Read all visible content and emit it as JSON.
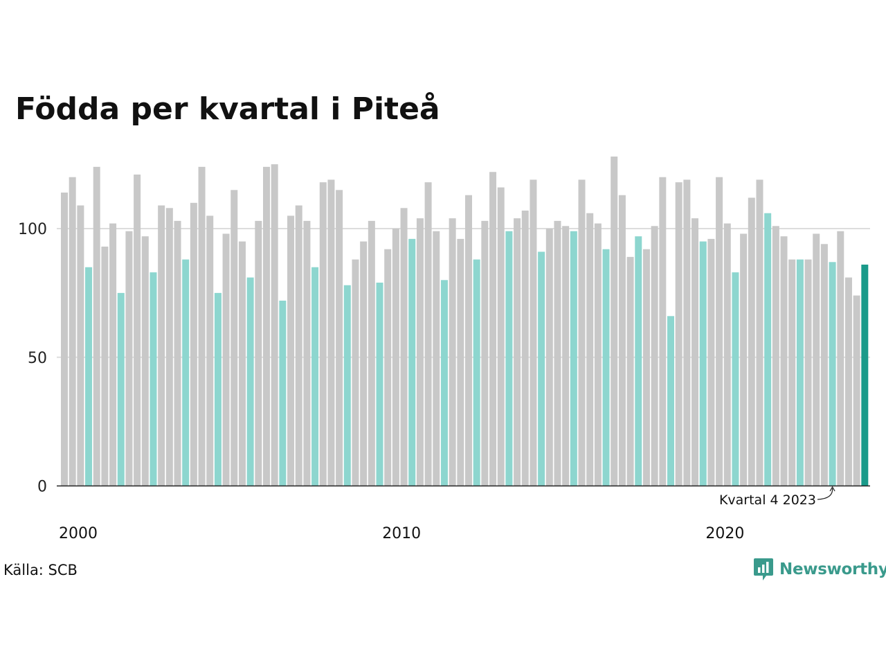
{
  "title": "Födda per kvartal i Piteå",
  "source": "Källa: SCB",
  "brand": {
    "name": "Newsworthy",
    "icon": "newsworthy-logo-icon",
    "color": "#3a9a8c"
  },
  "colors": {
    "other_quarters": "#c8c8c8",
    "q4": "#8dd6cf",
    "latest": "#1a9a8a",
    "grid": "#dddddd",
    "axis": "#222222"
  },
  "chart_data": {
    "type": "bar",
    "title": "Födda per kvartal i Piteå",
    "xlabel": "",
    "ylabel": "",
    "ylim": [
      0,
      130
    ],
    "yticks": [
      0,
      50,
      100
    ],
    "xtick_labels": [
      "2000",
      "2010",
      "2020"
    ],
    "grid": true,
    "annotation": {
      "text": "Kvartal 4 2023",
      "target_index": 95
    },
    "categories": [
      "2000 K1",
      "2000 K2",
      "2000 K3",
      "2000 K4",
      "2001 K1",
      "2001 K2",
      "2001 K3",
      "2001 K4",
      "2002 K1",
      "2002 K2",
      "2002 K3",
      "2002 K4",
      "2003 K1",
      "2003 K2",
      "2003 K3",
      "2003 K4",
      "2004 K1",
      "2004 K2",
      "2004 K3",
      "2004 K4",
      "2005 K1",
      "2005 K2",
      "2005 K3",
      "2005 K4",
      "2006 K1",
      "2006 K2",
      "2006 K3",
      "2006 K4",
      "2007 K1",
      "2007 K2",
      "2007 K3",
      "2007 K4",
      "2008 K1",
      "2008 K2",
      "2008 K3",
      "2008 K4",
      "2009 K1",
      "2009 K2",
      "2009 K3",
      "2009 K4",
      "2010 K1",
      "2010 K2",
      "2010 K3",
      "2010 K4",
      "2011 K1",
      "2011 K2",
      "2011 K3",
      "2011 K4",
      "2012 K1",
      "2012 K2",
      "2012 K3",
      "2012 K4",
      "2013 K1",
      "2013 K2",
      "2013 K3",
      "2013 K4",
      "2014 K1",
      "2014 K2",
      "2014 K3",
      "2014 K4",
      "2015 K1",
      "2015 K2",
      "2015 K3",
      "2015 K4",
      "2016 K1",
      "2016 K2",
      "2016 K3",
      "2016 K4",
      "2017 K1",
      "2017 K2",
      "2017 K3",
      "2017 K4",
      "2018 K1",
      "2018 K2",
      "2018 K3",
      "2018 K4",
      "2019 K1",
      "2019 K2",
      "2019 K3",
      "2019 K4",
      "2020 K1",
      "2020 K2",
      "2020 K3",
      "2020 K4",
      "2021 K1",
      "2021 K2",
      "2021 K3",
      "2021 K4",
      "2022 K1",
      "2022 K2",
      "2022 K3",
      "2022 K4",
      "2023 K1",
      "2023 K2",
      "2023 K3",
      "2023 K4",
      "2024 K1",
      "2024 K2",
      "2024 K3",
      "2024 K4"
    ],
    "values": [
      114,
      120,
      109,
      85,
      124,
      93,
      102,
      75,
      99,
      121,
      97,
      83,
      109,
      108,
      103,
      88,
      110,
      124,
      105,
      75,
      98,
      115,
      95,
      81,
      103,
      124,
      125,
      72,
      105,
      109,
      103,
      85,
      118,
      119,
      115,
      78,
      88,
      95,
      103,
      79,
      92,
      100,
      108,
      96,
      104,
      118,
      99,
      80,
      104,
      96,
      113,
      88,
      103,
      122,
      116,
      99,
      104,
      107,
      119,
      91,
      100,
      103,
      101,
      99,
      119,
      106,
      102,
      92,
      128,
      113,
      89,
      97,
      92,
      101,
      120,
      66,
      118,
      119,
      104,
      95,
      96,
      120,
      102,
      83,
      98,
      112,
      119,
      106,
      101,
      97,
      88,
      88,
      88,
      98,
      94,
      87,
      99,
      81,
      74,
      86
    ],
    "highlight": {
      "q4_indices": [
        3,
        7,
        11,
        15,
        19,
        23,
        27,
        31,
        35,
        39,
        43,
        47,
        51,
        55,
        59,
        63,
        67,
        71,
        75,
        79,
        83,
        87,
        91,
        95
      ],
      "latest_index": 99
    }
  }
}
